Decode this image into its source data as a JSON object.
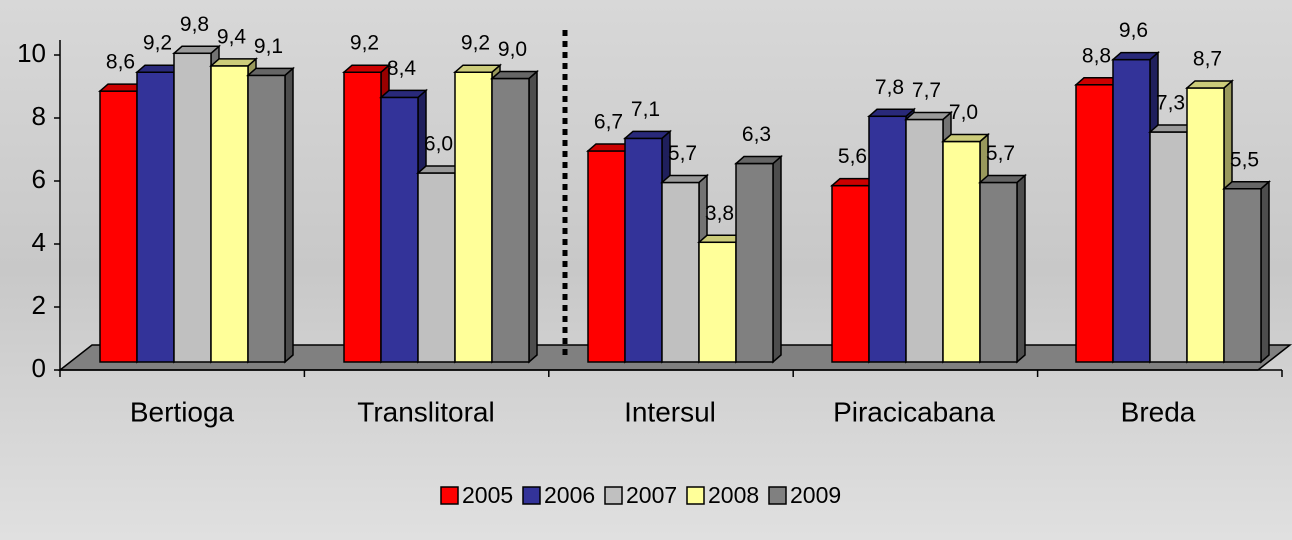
{
  "chart_data": {
    "type": "bar",
    "categories": [
      "Bertioga",
      "Translitoral",
      "Intersul",
      "Piracicabana",
      "Breda"
    ],
    "series": [
      {
        "name": "2005",
        "color": "#ff0000",
        "values": [
          8.6,
          9.2,
          6.7,
          5.6,
          8.8
        ],
        "value_labels": [
          "8,6",
          "9,2",
          "6,7",
          "5,6",
          "8,8"
        ]
      },
      {
        "name": "2006",
        "color": "#333399",
        "values": [
          9.2,
          8.4,
          7.1,
          7.8,
          9.6
        ],
        "value_labels": [
          "9,2",
          "8,4",
          "7,1",
          "7,8",
          "9,6"
        ]
      },
      {
        "name": "2007",
        "color": "#c0c0c0",
        "values": [
          9.8,
          6.0,
          5.7,
          7.7,
          7.3
        ],
        "value_labels": [
          "9,8",
          "6,0",
          "5,7",
          "7,7",
          "7,3"
        ]
      },
      {
        "name": "2008",
        "color": "#ffff99",
        "values": [
          9.4,
          9.2,
          3.8,
          7.0,
          8.7
        ],
        "value_labels": [
          "9,4",
          "9,2",
          "3,8",
          "7,0",
          "8,7"
        ]
      },
      {
        "name": "2009",
        "color": "#808080",
        "values": [
          9.1,
          9.0,
          6.3,
          5.7,
          5.5
        ],
        "value_labels": [
          "9,1",
          "9,0",
          "6,3",
          "5,7",
          "5,5"
        ]
      }
    ],
    "ylim": [
      0,
      10
    ],
    "yticks": [
      0,
      2,
      4,
      6,
      8,
      10
    ],
    "legend": "bottom"
  }
}
